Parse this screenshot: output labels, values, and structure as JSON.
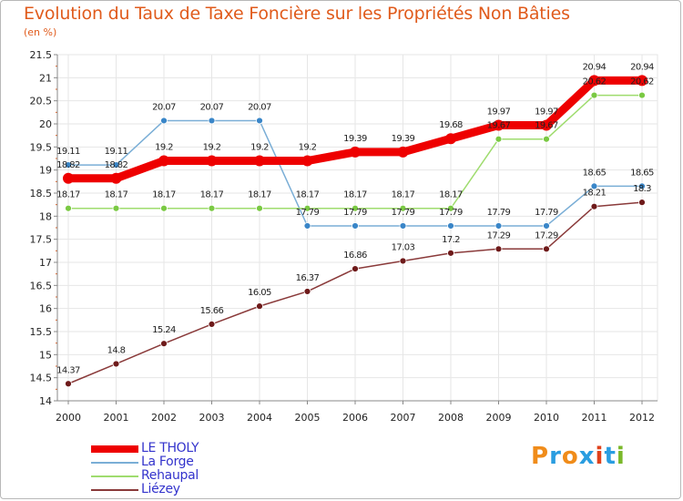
{
  "title": "Evolution du Taux de Taxe Foncière sur les Propriétés Non Bâties",
  "subtitle": "(en %)",
  "brand": {
    "text": "Proxiti",
    "letters": [
      {
        "ch": "P",
        "color": "#f08c1a"
      },
      {
        "ch": "r",
        "color": "#2a9de0"
      },
      {
        "ch": "o",
        "color": "#f08c1a"
      },
      {
        "ch": "x",
        "color": "#2a9de0"
      },
      {
        "ch": "i",
        "color": "#e0421c"
      },
      {
        "ch": "t",
        "color": "#2a9de0"
      },
      {
        "ch": "i",
        "color": "#7ab829"
      }
    ]
  },
  "chart_data": {
    "type": "line",
    "title": "Evolution du Taux de Taxe Foncière sur les Propriétés Non Bâties",
    "ylabel": "(en %)",
    "xlabel": "",
    "ylim": [
      14,
      21.5
    ],
    "yticks": [
      "14",
      "14.5",
      "15",
      "15.5",
      "16",
      "16.5",
      "17",
      "17.5",
      "18",
      "18.5",
      "19",
      "19.5",
      "20",
      "20.5",
      "21",
      "21.5"
    ],
    "x": [
      "2000",
      "2001",
      "2002",
      "2003",
      "2004",
      "2005",
      "2006",
      "2007",
      "2008",
      "2009",
      "2010",
      "2011",
      "2012"
    ],
    "grid": true,
    "legend_position": "bottom-left",
    "series": [
      {
        "name": "La Forge",
        "color": "#7aaed6",
        "marker": "#3a86c8",
        "values": [
          19.11,
          19.11,
          20.07,
          20.07,
          20.07,
          17.79,
          17.79,
          17.79,
          17.79,
          17.79,
          17.79,
          18.65,
          18.65
        ],
        "labels": [
          "19.11",
          "19.11",
          "20.07",
          "20.07",
          "20.07",
          "17.79",
          "17.79",
          "17.79",
          "17.79",
          "17.79",
          "17.79",
          "18.65",
          "18.65"
        ]
      },
      {
        "name": "Rehaupal",
        "color": "#9fdc6e",
        "marker": "#7ac943",
        "values": [
          18.17,
          18.17,
          18.17,
          18.17,
          18.17,
          18.17,
          18.17,
          18.17,
          18.17,
          19.67,
          19.67,
          20.62,
          20.62
        ],
        "labels": [
          "18.17",
          "18.17",
          "18.17",
          "18.17",
          "18.17",
          "18.17",
          "18.17",
          "18.17",
          "18.17",
          "19.67",
          "19.67",
          "20.62",
          "20.62"
        ]
      },
      {
        "name": "Liézey",
        "color": "#8a3a3a",
        "marker": "#6e1a1a",
        "values": [
          14.37,
          14.8,
          15.24,
          15.66,
          16.05,
          16.37,
          16.86,
          17.03,
          17.2,
          17.29,
          17.29,
          18.21,
          18.3
        ],
        "labels": [
          "14.37",
          "14.8",
          "15.24",
          "15.66",
          "16.05",
          "16.37",
          "16.86",
          "17.03",
          "17.2",
          "17.29",
          "17.29",
          "18.21",
          "18.3"
        ]
      },
      {
        "name": "LE THOLY",
        "color": "#ee0000",
        "marker": "#ee0000",
        "values": [
          18.82,
          18.82,
          19.2,
          19.2,
          19.2,
          19.2,
          19.39,
          19.39,
          19.68,
          19.97,
          19.97,
          20.94,
          20.94
        ],
        "labels": [
          "18.82",
          "18.82",
          "19.2",
          "19.2",
          "19.2",
          "19.2",
          "19.39",
          "19.39",
          "19.68",
          "19.97",
          "19.97",
          "20.94",
          "20.94"
        ]
      }
    ],
    "legend": [
      {
        "name": "LE THOLY",
        "color": "#ee0000",
        "thickness": 8
      },
      {
        "name": "La Forge",
        "color": "#7aaed6",
        "thickness": 2
      },
      {
        "name": "Rehaupal",
        "color": "#9fdc6e",
        "thickness": 2
      },
      {
        "name": "Liézey",
        "color": "#8a3a3a",
        "thickness": 2
      }
    ]
  }
}
